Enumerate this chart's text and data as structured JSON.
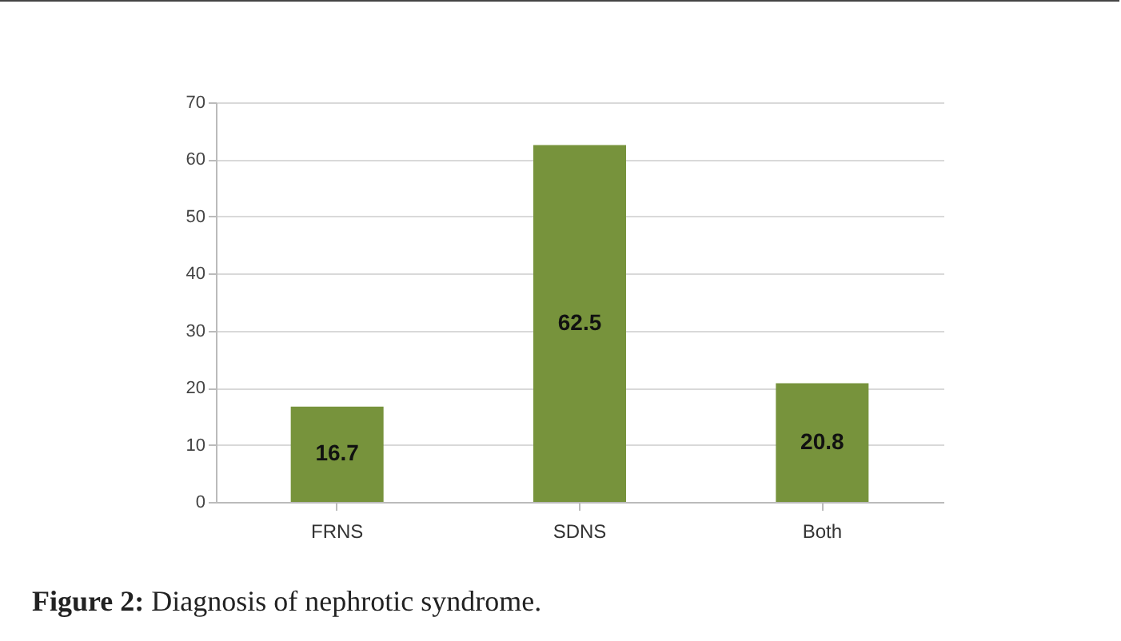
{
  "chart_data": {
    "type": "bar",
    "categories": [
      "FRNS",
      "SDNS",
      "Both"
    ],
    "values": [
      16.7,
      62.5,
      20.8
    ],
    "color": "#77933c",
    "ylim": [
      0,
      70
    ],
    "yticks": [
      0,
      10,
      20,
      30,
      40,
      50,
      60,
      70
    ],
    "grid": "y",
    "data_labels": true,
    "annotations": [
      "Figure 2: Diagnosis of nephrotic syndrome."
    ]
  }
}
